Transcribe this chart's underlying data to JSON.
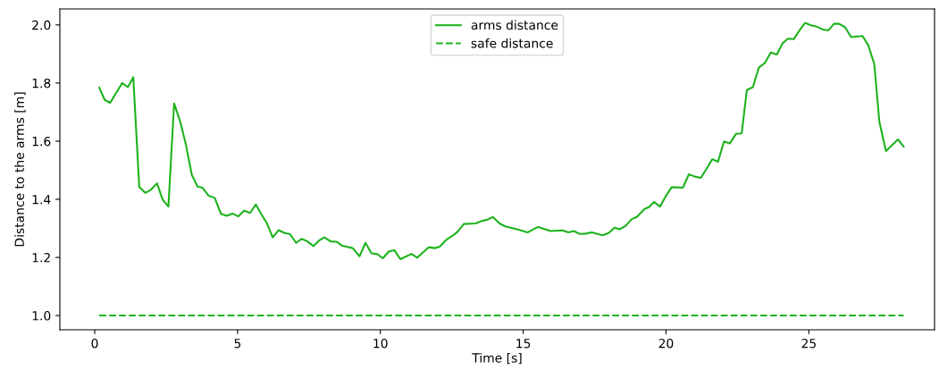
{
  "chart_data": {
    "type": "line",
    "xlabel": "Time [s]",
    "ylabel": "Distance to the arms [m]",
    "xlim": [
      -1.22,
      29.4
    ],
    "ylim": [
      0.951,
      2.055
    ],
    "xticks": [
      0,
      5,
      10,
      15,
      20,
      25
    ],
    "yticks": [
      {
        "value": 1,
        "label": "1.0"
      },
      1.2,
      1.4,
      1.6,
      1.8,
      {
        "value": 2,
        "label": "2.0"
      }
    ],
    "grid": false,
    "legend": "top",
    "marker": "none",
    "series": [
      {
        "name": "arms distance",
        "color": "#1db31d",
        "line_style": "solid",
        "x": [
          0.16,
          0.35,
          0.54,
          0.96,
          1.16,
          1.35,
          1.56,
          1.77,
          1.96,
          2.18,
          2.38,
          2.58,
          2.78,
          2.99,
          3.18,
          3.4,
          3.6,
          3.77,
          3.99,
          4.2,
          4.42,
          4.62,
          4.82,
          5.02,
          5.23,
          5.44,
          5.64,
          5.84,
          6.03,
          6.23,
          6.44,
          6.65,
          6.84,
          7.05,
          7.25,
          7.45,
          7.66,
          7.85,
          8.04,
          8.26,
          8.46,
          8.67,
          9.03,
          9.27,
          9.48,
          9.69,
          9.88,
          10.09,
          10.29,
          10.49,
          10.7,
          11.09,
          11.29,
          11.69,
          11.9,
          12.08,
          12.31,
          12.52,
          12.71,
          12.92,
          13.33,
          13.54,
          13.74,
          13.94,
          14.17,
          14.37,
          14.81,
          15.15,
          15.52,
          15.96,
          16.38,
          16.58,
          16.77,
          16.98,
          17.19,
          17.4,
          17.78,
          17.99,
          18.2,
          18.38,
          18.59,
          18.8,
          18.98,
          19.24,
          19.4,
          19.58,
          19.79,
          20.0,
          20.2,
          20.59,
          20.8,
          21.01,
          21.22,
          21.43,
          21.62,
          21.82,
          22.03,
          22.23,
          22.45,
          22.65,
          22.83,
          23.04,
          23.25,
          23.46,
          23.67,
          23.88,
          24.08,
          24.27,
          24.47,
          24.68,
          24.87,
          25.07,
          25.28,
          25.49,
          25.68,
          25.88,
          26.06,
          26.27,
          26.48,
          26.88,
          27.08,
          27.29,
          27.47,
          27.7,
          28.12,
          28.32
        ],
        "values": [
          1.784,
          1.742,
          1.732,
          1.8,
          1.786,
          1.82,
          1.442,
          1.422,
          1.432,
          1.455,
          1.399,
          1.375,
          1.73,
          1.668,
          1.594,
          1.484,
          1.444,
          1.44,
          1.412,
          1.405,
          1.35,
          1.343,
          1.351,
          1.341,
          1.361,
          1.353,
          1.382,
          1.348,
          1.317,
          1.269,
          1.294,
          1.284,
          1.28,
          1.25,
          1.264,
          1.255,
          1.239,
          1.258,
          1.269,
          1.255,
          1.254,
          1.24,
          1.232,
          1.204,
          1.25,
          1.214,
          1.212,
          1.197,
          1.22,
          1.225,
          1.194,
          1.212,
          1.199,
          1.235,
          1.232,
          1.237,
          1.261,
          1.274,
          1.289,
          1.315,
          1.317,
          1.325,
          1.33,
          1.339,
          1.317,
          1.307,
          1.296,
          1.286,
          1.305,
          1.291,
          1.293,
          1.286,
          1.291,
          1.281,
          1.282,
          1.286,
          1.276,
          1.284,
          1.302,
          1.297,
          1.309,
          1.332,
          1.339,
          1.366,
          1.373,
          1.391,
          1.375,
          1.412,
          1.442,
          1.44,
          1.486,
          1.478,
          1.474,
          1.507,
          1.538,
          1.529,
          1.599,
          1.592,
          1.625,
          1.627,
          1.776,
          1.786,
          1.853,
          1.869,
          1.905,
          1.898,
          1.937,
          1.953,
          1.951,
          1.982,
          2.007,
          1.999,
          1.994,
          1.984,
          1.981,
          2.004,
          2.004,
          1.992,
          1.958,
          1.962,
          1.93,
          1.866,
          1.666,
          1.566,
          1.606,
          1.581
        ]
      },
      {
        "name": "safe distance",
        "color": "#1db31d",
        "line_style": "dashed",
        "x": [
          0.16,
          28.32
        ],
        "values": [
          1.0,
          1.0
        ]
      }
    ]
  }
}
